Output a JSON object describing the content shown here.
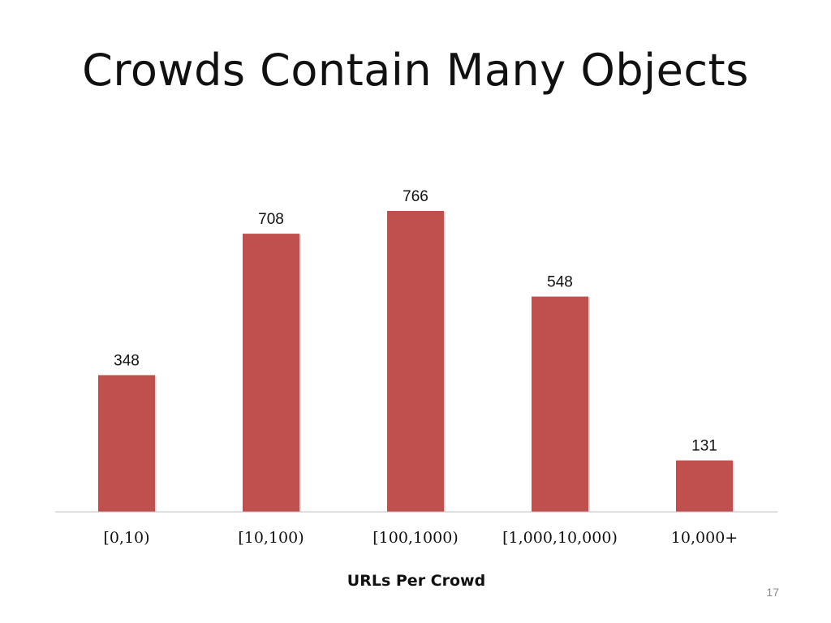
{
  "slide": {
    "title": "Crowds Contain Many Objects",
    "page_number": "17"
  },
  "chart_data": {
    "type": "bar",
    "title": "",
    "xlabel": "URLs Per Crowd",
    "ylabel": "",
    "categories": [
      "[0,10)",
      "[10,100)",
      "[100,1000)",
      "[1,000,10,000)",
      "10,000+"
    ],
    "values": [
      348,
      708,
      766,
      548,
      131
    ],
    "data_labels": [
      "348",
      "708",
      "766",
      "548",
      "131"
    ],
    "ylim": [
      0,
      766
    ],
    "grid": false,
    "legend": "none",
    "bar_color": "#c0504d",
    "axis_color": "#bfbfbf"
  }
}
